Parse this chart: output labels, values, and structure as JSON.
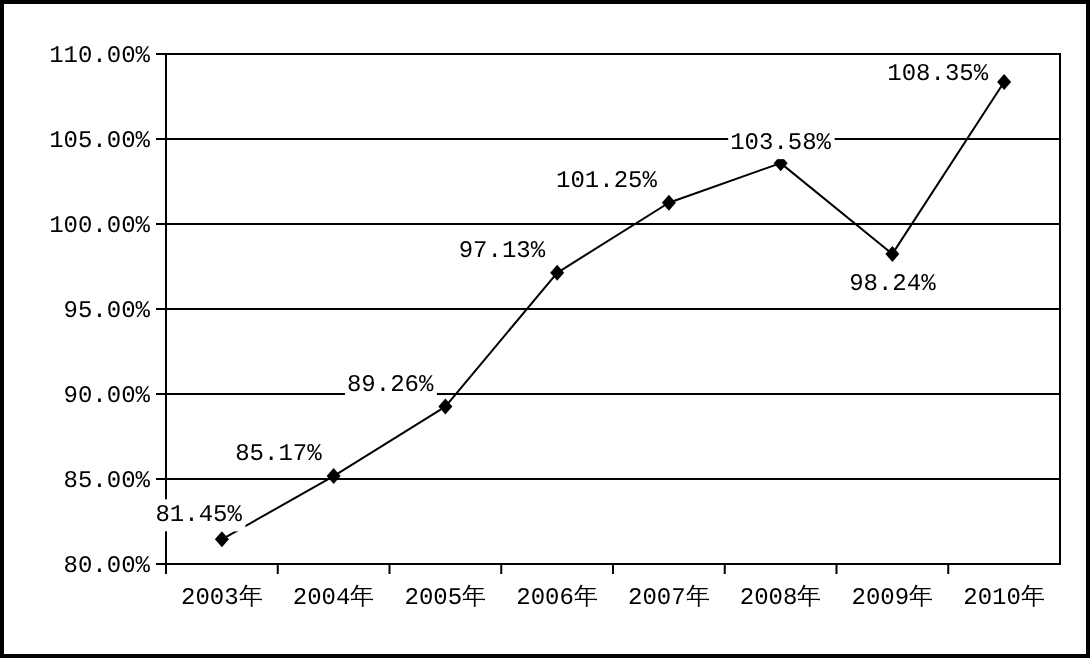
{
  "chart_data": {
    "type": "line",
    "categories": [
      "2003年",
      "2004年",
      "2005年",
      "2006年",
      "2007年",
      "2008年",
      "2009年",
      "2010年"
    ],
    "series": [
      {
        "color": "#000000",
        "values": [
          81.45,
          85.17,
          89.26,
          97.13,
          101.25,
          103.58,
          98.24,
          108.35
        ],
        "value_labels": [
          "81.45%",
          "85.17%",
          "89.26%",
          "97.13%",
          "101.25%",
          "103.58%",
          "98.24%",
          "108.35%"
        ]
      }
    ],
    "ylim": [
      80,
      110
    ],
    "yticks": [
      {
        "value": 80,
        "label": "80.00%"
      },
      {
        "value": 85,
        "label": "85.00%"
      },
      {
        "value": 90,
        "label": "90.00%"
      },
      {
        "value": 95,
        "label": "95.00%"
      },
      {
        "value": 100,
        "label": "100.00%"
      },
      {
        "value": 105,
        "label": "105.00%"
      },
      {
        "value": 110,
        "label": "110.00%"
      }
    ],
    "grid": "y",
    "marker": "diamond",
    "line_style": "solid"
  }
}
